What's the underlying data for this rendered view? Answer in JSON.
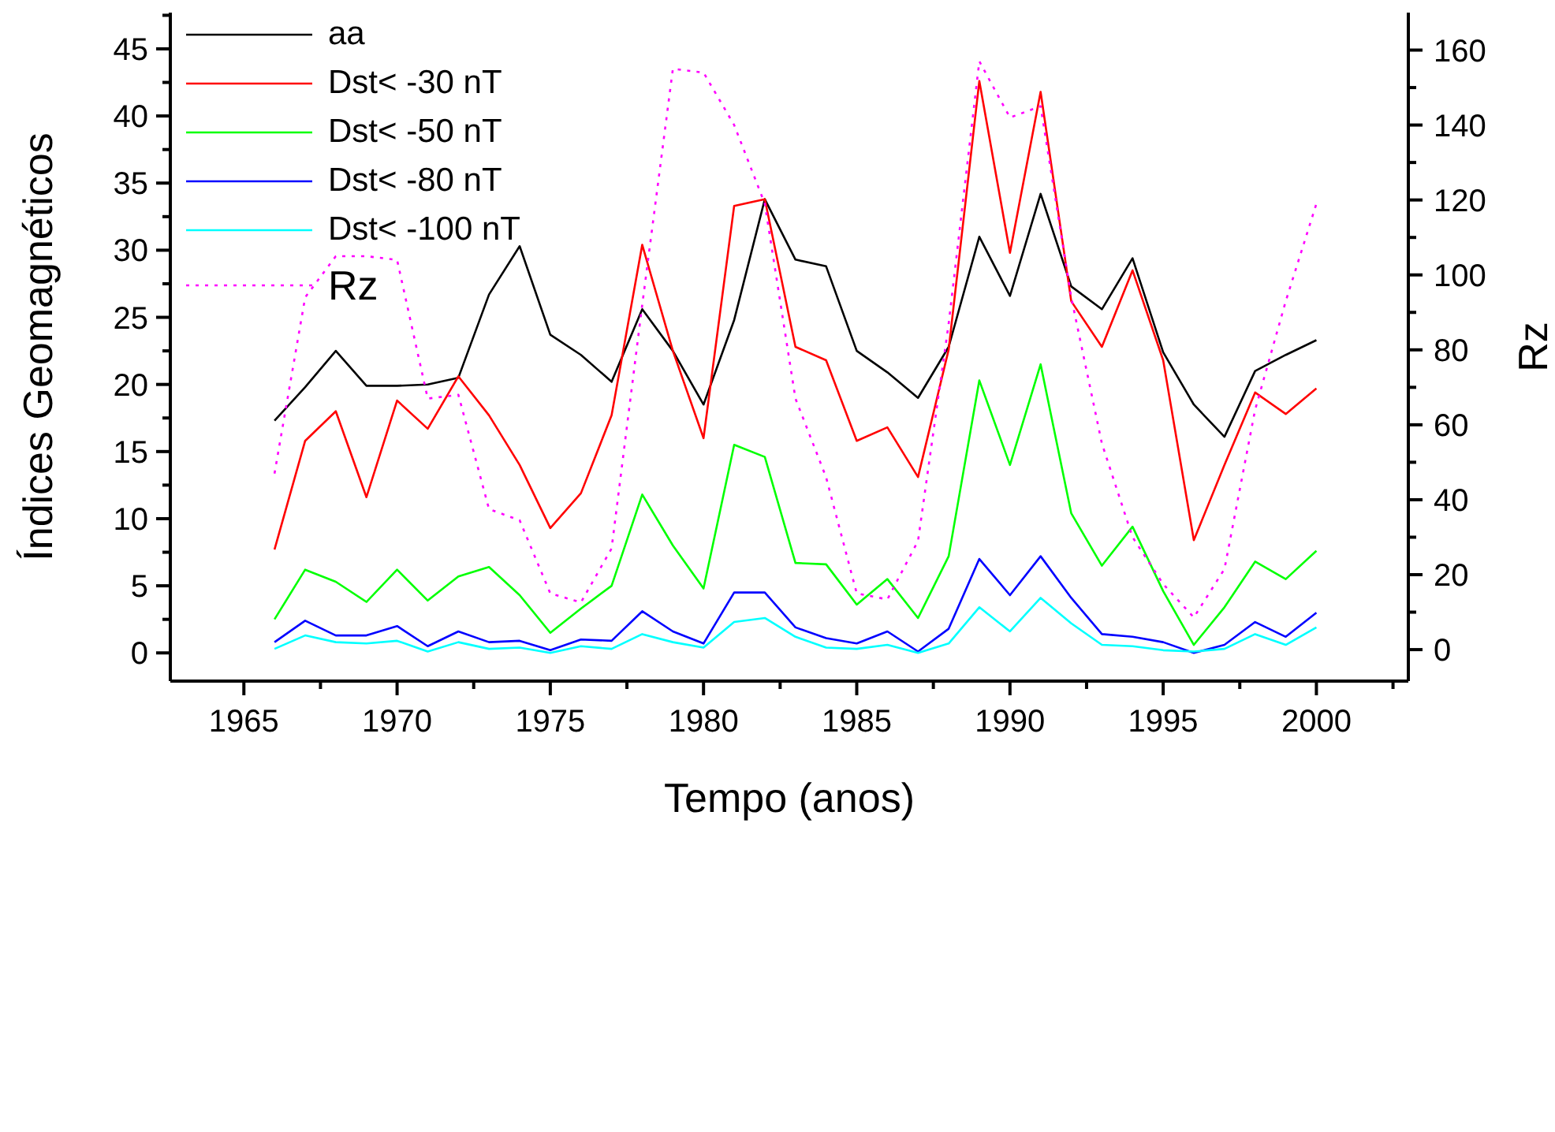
{
  "chart_data": {
    "type": "line",
    "xlabel": "Tempo (anos)",
    "ylabel": "Índices Geomagnéticos",
    "y2label": "Rz",
    "x": [
      1966,
      1967,
      1968,
      1969,
      1970,
      1971,
      1972,
      1973,
      1974,
      1975,
      1976,
      1977,
      1978,
      1979,
      1980,
      1981,
      1982,
      1983,
      1984,
      1985,
      1986,
      1987,
      1988,
      1989,
      1990,
      1991,
      1992,
      1993,
      1994,
      1995,
      1996,
      1997,
      1998,
      1999,
      2000
    ],
    "series": [
      {
        "name": "aa",
        "color": "#000000",
        "values": [
          17.3,
          19.8,
          22.5,
          19.9,
          19.9,
          20.0,
          20.5,
          26.7,
          30.3,
          23.7,
          22.2,
          20.2,
          25.6,
          22.5,
          18.5,
          24.8,
          33.8,
          29.3,
          28.8,
          22.5,
          20.9,
          19.0,
          22.8,
          31.0,
          26.6,
          34.2,
          27.3,
          25.6,
          29.4,
          22.4,
          18.5,
          16.1,
          21.0,
          22.2,
          23.3
        ]
      },
      {
        "name": "Dst< -30 nT",
        "color": "#ff0000",
        "values": [
          7.7,
          15.8,
          18.0,
          11.6,
          18.8,
          16.7,
          20.6,
          17.7,
          14.0,
          9.3,
          11.9,
          17.7,
          30.4,
          22.5,
          16.0,
          33.3,
          33.8,
          22.8,
          21.8,
          15.8,
          16.8,
          13.1,
          22.6,
          42.6,
          29.8,
          41.8,
          26.2,
          22.8,
          28.5,
          21.8,
          8.4,
          14.0,
          19.4,
          17.8,
          19.7
        ]
      },
      {
        "name": "Dst< -50 nT",
        "color": "#00ff00",
        "values": [
          2.5,
          6.2,
          5.3,
          3.8,
          6.2,
          3.9,
          5.7,
          6.4,
          4.3,
          1.5,
          3.3,
          5.0,
          11.8,
          8.0,
          4.8,
          15.5,
          14.6,
          6.7,
          6.6,
          3.6,
          5.5,
          2.6,
          7.2,
          20.3,
          14.0,
          21.5,
          10.4,
          6.5,
          9.4,
          4.6,
          0.6,
          3.4,
          6.8,
          5.5,
          7.6
        ]
      },
      {
        "name": "Dst< -80 nT",
        "color": "#0000ff",
        "values": [
          0.8,
          2.4,
          1.3,
          1.3,
          2.0,
          0.5,
          1.6,
          0.8,
          0.9,
          0.2,
          1.0,
          0.9,
          3.1,
          1.6,
          0.7,
          4.5,
          4.5,
          1.9,
          1.1,
          0.7,
          1.6,
          0.1,
          1.8,
          7.0,
          4.3,
          7.2,
          4.1,
          1.4,
          1.2,
          0.8,
          0.0,
          0.6,
          2.3,
          1.2,
          3.0
        ]
      },
      {
        "name": "Dst< -100 nT",
        "color": "#00ffff",
        "values": [
          0.3,
          1.3,
          0.8,
          0.7,
          0.9,
          0.1,
          0.8,
          0.3,
          0.4,
          0.0,
          0.5,
          0.3,
          1.4,
          0.8,
          0.4,
          2.3,
          2.6,
          1.2,
          0.4,
          0.3,
          0.6,
          0.0,
          0.7,
          3.4,
          1.6,
          4.1,
          2.2,
          0.6,
          0.5,
          0.2,
          0.1,
          0.3,
          1.4,
          0.6,
          1.9
        ]
      },
      {
        "name": "Rz",
        "color": "#ff00ff",
        "axis": "y2",
        "line_style": "dotted",
        "values": [
          47,
          94,
          105,
          105,
          104,
          67,
          68,
          37.5,
          34.5,
          15,
          12.6,
          27,
          92,
          155,
          154,
          140,
          119,
          67,
          46,
          15,
          13.4,
          29,
          87,
          157,
          142,
          145,
          94,
          55,
          30,
          17.5,
          8.6,
          21.5,
          64,
          93,
          119
        ]
      }
    ],
    "xlim": [
      1962.6,
      2003
    ],
    "xticks": [
      1965,
      {
        "value": 1967.5,
        "label": null
      },
      1970,
      {
        "value": 1972.5,
        "label": null
      },
      1975,
      {
        "value": 1977.5,
        "label": null
      },
      1980,
      {
        "value": 1982.5,
        "label": null
      },
      1985,
      {
        "value": 1987.5,
        "label": null
      },
      1990,
      {
        "value": 1992.5,
        "label": null
      },
      1995,
      {
        "value": 1997.5,
        "label": null
      },
      2000,
      {
        "value": 2002.5,
        "label": null
      }
    ],
    "ylim": [
      -2.1,
      47.7
    ],
    "yticks": [
      0,
      {
        "value": 2.5,
        "label": null
      },
      5,
      {
        "value": 7.5,
        "label": null
      },
      10,
      {
        "value": 12.5,
        "label": null
      },
      15,
      {
        "value": 17.5,
        "label": null
      },
      20,
      {
        "value": 22.5,
        "label": null
      },
      25,
      {
        "value": 27.5,
        "label": null
      },
      30,
      {
        "value": 32.5,
        "label": null
      },
      35,
      {
        "value": 37.5,
        "label": null
      },
      40,
      {
        "value": 42.5,
        "label": null
      },
      45,
      {
        "value": 47.5,
        "label": null
      }
    ],
    "y2lim": [
      -8.4,
      170
    ],
    "y2ticks": [
      0,
      {
        "value": 10,
        "label": null
      },
      20,
      {
        "value": 30,
        "label": null
      },
      40,
      {
        "value": 50,
        "label": null
      },
      60,
      {
        "value": 70,
        "label": null
      },
      80,
      {
        "value": 90,
        "label": null
      },
      100,
      {
        "value": 110,
        "label": null
      },
      120,
      {
        "value": 130,
        "label": null
      },
      140,
      {
        "value": 150,
        "label": null
      },
      160
    ],
    "legend": "top left",
    "grid": false,
    "marker": "none",
    "line_style": "solid"
  }
}
